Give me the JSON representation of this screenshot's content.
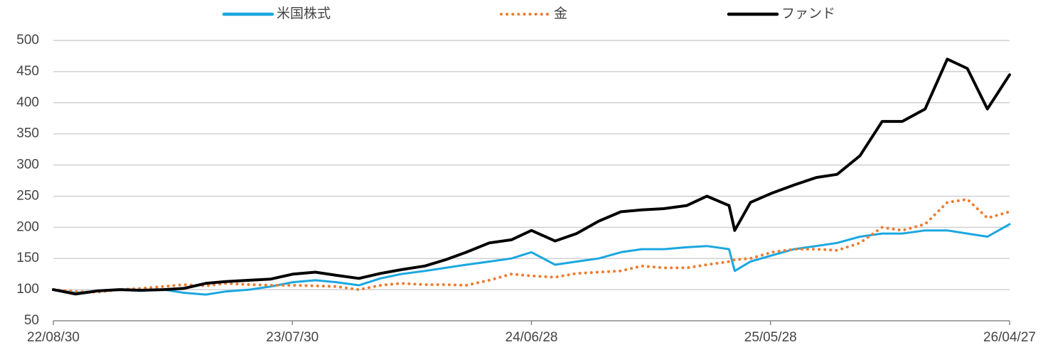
{
  "chart_data": {
    "type": "line",
    "x": [
      "22/08/30",
      "22/09/30",
      "22/10/31",
      "22/11/30",
      "22/12/30",
      "23/01/31",
      "23/02/28",
      "23/03/31",
      "23/04/28",
      "23/05/31",
      "23/06/30",
      "23/07/31",
      "23/08/31",
      "23/09/29",
      "23/10/31",
      "23/11/30",
      "23/12/29",
      "24/01/31",
      "24/02/29",
      "24/03/29",
      "24/04/30",
      "24/05/31",
      "24/06/28",
      "24/07/31",
      "24/08/30",
      "24/09/30",
      "24/10/31",
      "24/11/29",
      "24/12/30",
      "25/01/31",
      "25/02/28",
      "25/03/31",
      "25/04/08",
      "25/04/30",
      "25/05/30",
      "25/06/30",
      "25/07/31",
      "25/08/29",
      "25/09/30",
      "25/10/31",
      "25/11/28",
      "25/12/30",
      "26/01/30",
      "26/02/27",
      "26/03/27",
      "26/04/27"
    ],
    "series": [
      {
        "name": "米国株式",
        "color": "#1aa7e0",
        "style": "solid",
        "values": [
          100,
          95,
          98,
          100,
          98,
          100,
          95,
          92,
          97,
          100,
          105,
          112,
          115,
          112,
          107,
          118,
          125,
          130,
          135,
          140,
          145,
          150,
          160,
          140,
          145,
          150,
          160,
          165,
          165,
          168,
          170,
          165,
          130,
          145,
          155,
          165,
          170,
          175,
          185,
          190,
          190,
          195,
          195,
          190,
          185,
          205
        ]
      },
      {
        "name": "金",
        "color": "#ed7d31",
        "style": "dotted",
        "values": [
          100,
          97,
          96,
          100,
          102,
          105,
          108,
          106,
          110,
          108,
          107,
          107,
          106,
          105,
          100,
          107,
          110,
          108,
          108,
          107,
          115,
          125,
          122,
          120,
          126,
          128,
          130,
          138,
          135,
          135,
          140,
          145,
          148,
          150,
          160,
          165,
          165,
          163,
          175,
          200,
          195,
          205,
          240,
          245,
          215,
          225
        ]
      },
      {
        "name": "ファンド",
        "color": "#000000",
        "style": "solid",
        "values": [
          100,
          93,
          98,
          100,
          99,
          100,
          102,
          110,
          113,
          115,
          117,
          125,
          128,
          123,
          118,
          126,
          132,
          138,
          148,
          160,
          175,
          180,
          195,
          178,
          190,
          210,
          225,
          228,
          230,
          235,
          250,
          235,
          195,
          240,
          255,
          268,
          280,
          285,
          315,
          370,
          370,
          390,
          470,
          455,
          390,
          445
        ]
      }
    ],
    "xlim": [
      "22/08/30",
      "26/04/27"
    ],
    "xticks": [
      "22/08/30",
      "23/07/30",
      "24/06/28",
      "25/05/28",
      "26/04/27"
    ],
    "ylim": [
      50,
      500
    ],
    "yticks": [
      50,
      100,
      150,
      200,
      250,
      300,
      350,
      400,
      450,
      500
    ],
    "grid": true,
    "legend": "top"
  }
}
